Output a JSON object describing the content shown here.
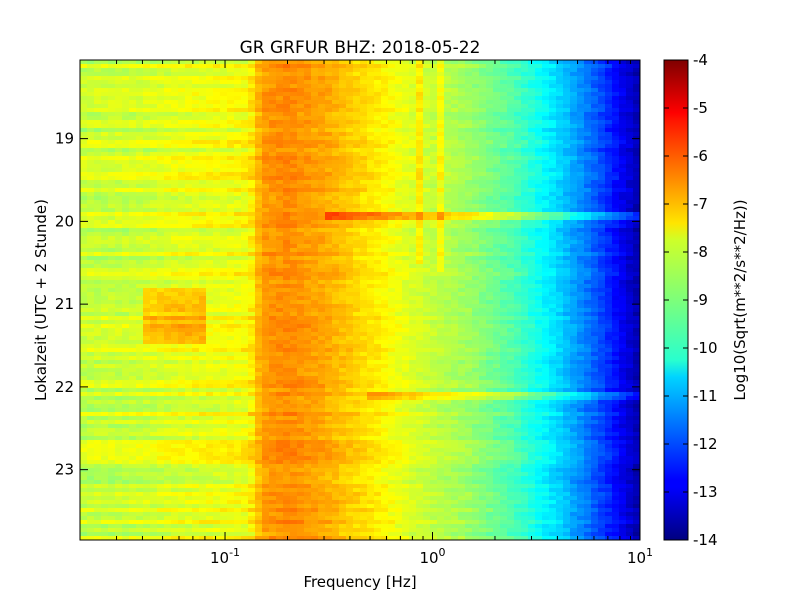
{
  "chart_data": {
    "type": "heatmap",
    "title": "GR GRFUR BHZ: 2018-05-22",
    "xlabel": "Frequency [Hz]",
    "ylabel": "Lokalzeit (UTC + 2 Stunde)",
    "x_scale": "log",
    "xlim": [
      0.02,
      10
    ],
    "x_ticks": [
      {
        "value": 0.1,
        "base": "10",
        "exp": "-1"
      },
      {
        "value": 1,
        "base": "10",
        "exp": "0"
      },
      {
        "value": 10,
        "base": "10",
        "exp": "1"
      }
    ],
    "ylim": [
      18.05,
      23.85
    ],
    "y_inverted": true,
    "y_ticks": [
      "19",
      "20",
      "21",
      "22",
      "23"
    ],
    "colorbar": {
      "label": "Log10(Sqrt(m**2/s**2/Hz))",
      "min": -14,
      "max": -4,
      "ticks": [
        "-4",
        "-5",
        "-6",
        "-7",
        "-8",
        "-9",
        "-10",
        "-11",
        "-12",
        "-13",
        "-14"
      ],
      "colormap": "jet"
    },
    "frequency_profile": [
      {
        "f": 0.02,
        "v": -8.3
      },
      {
        "f": 0.04,
        "v": -8.2
      },
      {
        "f": 0.06,
        "v": -8.0
      },
      {
        "f": 0.1,
        "v": -7.9
      },
      {
        "f": 0.13,
        "v": -7.8
      },
      {
        "f": 0.15,
        "v": -6.8
      },
      {
        "f": 0.2,
        "v": -6.6
      },
      {
        "f": 0.3,
        "v": -6.9
      },
      {
        "f": 0.5,
        "v": -7.5
      },
      {
        "f": 0.8,
        "v": -8.1
      },
      {
        "f": 1.5,
        "v": -8.7
      },
      {
        "f": 2.5,
        "v": -9.5
      },
      {
        "f": 4.0,
        "v": -10.6
      },
      {
        "f": 6.0,
        "v": -11.8
      },
      {
        "f": 8.0,
        "v": -12.8
      },
      {
        "f": 10.0,
        "v": -13.6
      }
    ],
    "events": [
      {
        "time": 19.93,
        "fmin": 0.3,
        "fmax": 10,
        "delta": 1.0
      },
      {
        "time": 22.1,
        "fmin": 0.5,
        "fmax": 10,
        "delta": 0.8
      }
    ],
    "spectral_lines": [
      {
        "freq": 0.85,
        "tmin": 18.05,
        "tmax": 20.5,
        "delta": 0.6
      },
      {
        "freq": 1.12,
        "tmin": 18.05,
        "tmax": 20.6,
        "delta": 0.6
      }
    ],
    "anomalies": [
      {
        "fmin": 0.04,
        "fmax": 0.08,
        "tmin": 20.8,
        "tmax": 21.5,
        "delta": 0.9
      }
    ]
  }
}
